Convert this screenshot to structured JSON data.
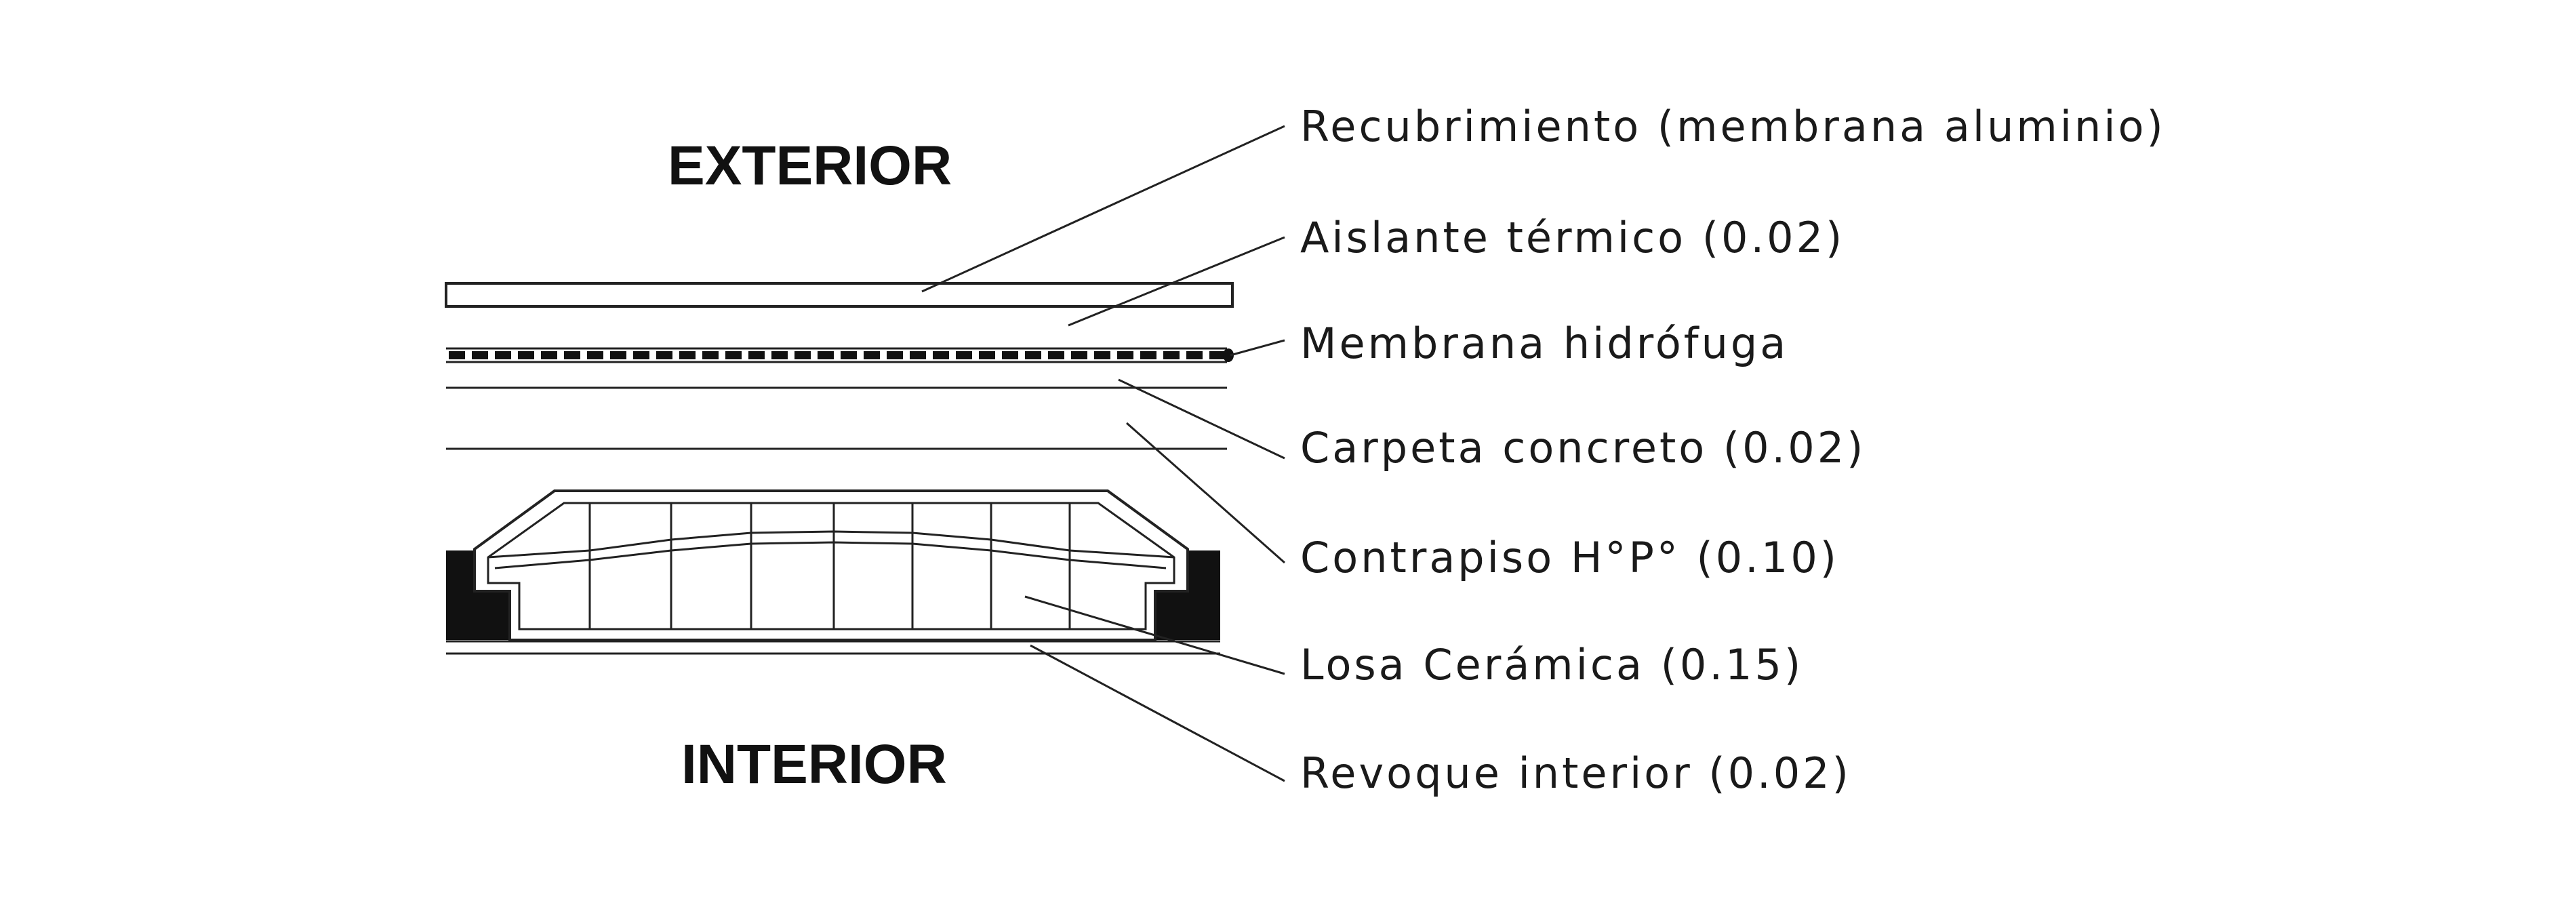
{
  "diagram": {
    "title_exterior": "EXTERIOR",
    "title_interior": "INTERIOR",
    "layers": [
      {
        "id": "recubrimiento",
        "label": "Recubrimiento (membrana aluminio)"
      },
      {
        "id": "aislante",
        "label": "Aislante térmico (0.02)"
      },
      {
        "id": "membrana",
        "label": "Membrana hidrófuga"
      },
      {
        "id": "carpeta",
        "label": "Carpeta concreto (0.02)"
      },
      {
        "id": "contrapiso",
        "label": "Contrapiso H°P° (0.10)"
      },
      {
        "id": "losa",
        "label": "Losa Cerámica (0.15)"
      },
      {
        "id": "revoque",
        "label": "Revoque interior (0.02)"
      }
    ],
    "colors": {
      "line": "#222222",
      "fill_dark": "#111111",
      "background": "#ffffff"
    }
  }
}
